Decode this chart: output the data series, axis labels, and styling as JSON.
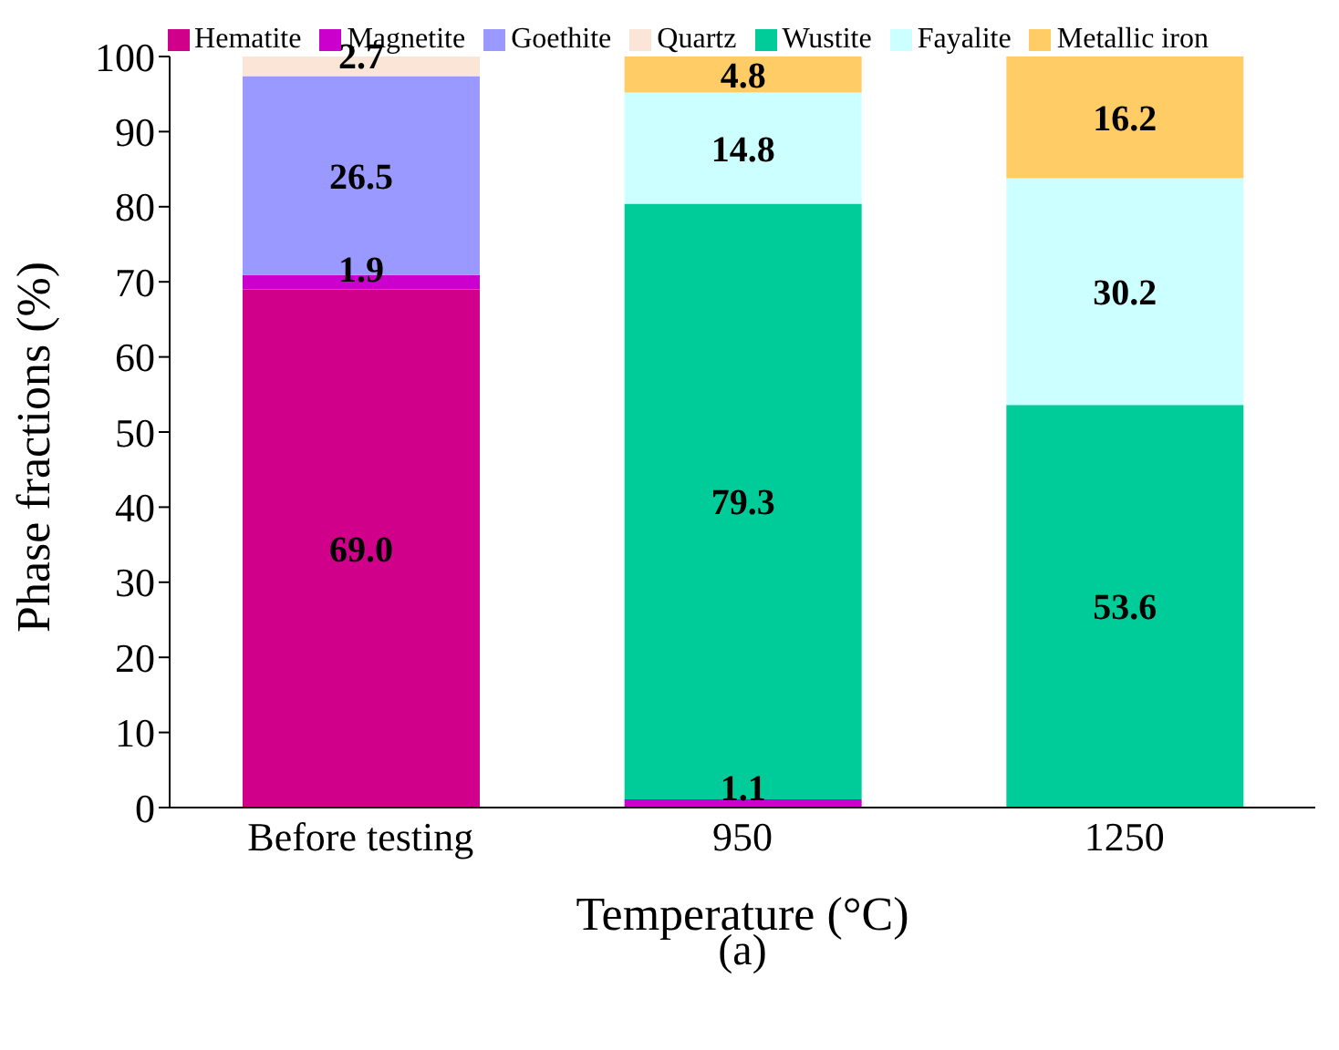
{
  "chart_data": {
    "type": "bar",
    "stacked": true,
    "xlabel": "Temperature (°C)",
    "ylabel": "Phase fractions (%)",
    "annotations": [
      "(a)"
    ],
    "categories": [
      "Before testing",
      "950",
      "1250"
    ],
    "ylim": [
      0,
      100
    ],
    "yticks": [
      0,
      10,
      20,
      30,
      40,
      50,
      60,
      70,
      80,
      90,
      100
    ],
    "grid": false,
    "legend": "top",
    "series": [
      {
        "name": "Hematite",
        "color": "#d1008b",
        "values": [
          69.0,
          null,
          null
        ],
        "value_labels": [
          "69.0",
          null,
          null
        ]
      },
      {
        "name": "Magnetite",
        "color": "#cc00cc",
        "values": [
          1.9,
          1.1,
          null
        ],
        "value_labels": [
          "1.9",
          "1.1",
          null
        ]
      },
      {
        "name": "Goethite",
        "color": "#9999ff",
        "values": [
          26.5,
          null,
          null
        ],
        "value_labels": [
          "26.5",
          null,
          null
        ]
      },
      {
        "name": "Quartz",
        "color": "#fbe5d6",
        "values": [
          2.7,
          null,
          null
        ],
        "value_labels": [
          "2.7",
          null,
          null
        ]
      },
      {
        "name": "Wustite",
        "color": "#00cc99",
        "values": [
          null,
          79.3,
          53.6
        ],
        "value_labels": [
          null,
          "79.3",
          "53.6"
        ]
      },
      {
        "name": "Fayalite",
        "color": "#ccffff",
        "values": [
          null,
          14.8,
          30.2
        ],
        "value_labels": [
          null,
          "14.8",
          "30.2"
        ]
      },
      {
        "name": "Metallic iron",
        "color": "#ffcc66",
        "values": [
          null,
          4.8,
          16.2
        ],
        "value_labels": [
          null,
          "4.8",
          "16.2"
        ]
      }
    ]
  }
}
